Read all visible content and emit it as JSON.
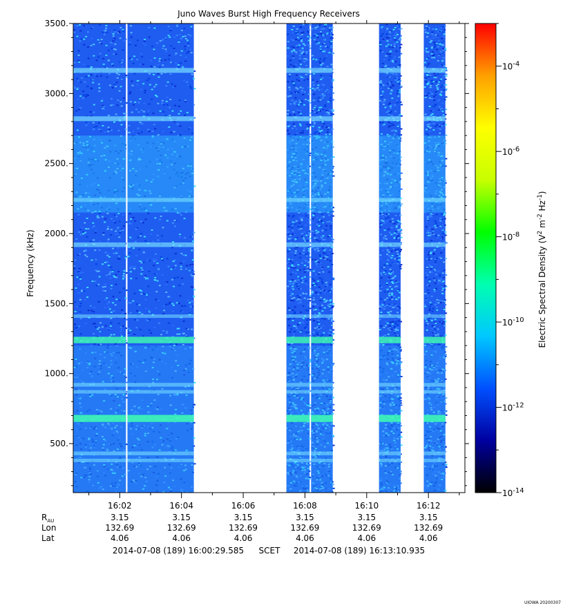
{
  "chart_data": {
    "type": "heatmap",
    "title": "Juno Waves Burst High Frequency Receivers",
    "ylabel": "Frequency (kHz)",
    "ylim": [
      150,
      3500
    ],
    "y_ticks": [
      500,
      1000,
      1500,
      2000,
      2500,
      3000,
      3500
    ],
    "y_tick_labels": [
      "500.",
      "1000.",
      "1500.",
      "2000.",
      "2500.",
      "3000.",
      "3500."
    ],
    "x_range": [
      "16:00:29.585",
      "16:13:10.935"
    ],
    "x_tick_labels": [
      "16:02",
      "16:04",
      "16:06",
      "16:08",
      "16:10",
      "16:12"
    ],
    "x_tick_minutes": [
      2,
      4,
      6,
      8,
      10,
      12
    ],
    "data_segments_minutes": [
      [
        0.0,
        2.2
      ],
      [
        2.25,
        4.4
      ],
      [
        7.4,
        8.15
      ],
      [
        8.2,
        8.9
      ],
      [
        10.4,
        11.1
      ],
      [
        11.85,
        12.55
      ]
    ],
    "bands_khz": [
      {
        "freq": 3165,
        "strength": 0.5
      },
      {
        "freq": 2820,
        "strength": 0.5
      },
      {
        "freq": 2240,
        "strength": 0.35
      },
      {
        "freq": 1920,
        "strength": 0.45
      },
      {
        "freq": 1410,
        "strength": 0.25
      },
      {
        "freq": 1240,
        "strength": 0.8
      },
      {
        "freq": 920,
        "strength": 0.3
      },
      {
        "freq": 870,
        "strength": 0.25
      },
      {
        "freq": 680,
        "strength": 0.9
      },
      {
        "freq": 430,
        "strength": 0.3
      },
      {
        "freq": 380,
        "strength": 0.25
      }
    ],
    "colorbar": {
      "label_main": "Electric Spectral Density (V",
      "label_end": ")",
      "exponent": "-14",
      "tick_exponents": [
        "-14",
        "-12",
        "-10",
        "-8",
        "-6",
        "-4"
      ],
      "tick_values": [
        -14,
        -12,
        -10,
        -8,
        -6,
        -4
      ],
      "range_log": [
        -14,
        -3
      ],
      "colors": [
        "#000000",
        "#0000a0",
        "#0050ff",
        "#00c8ff",
        "#00ffb0",
        "#00ff00",
        "#c8ff00",
        "#ffff00",
        "#ffa000",
        "#ff0000"
      ]
    },
    "ephemeris": {
      "rows": [
        {
          "label": "R",
          "sub": "AU",
          "values": [
            "3.15",
            "3.15",
            "3.15",
            "3.15",
            "3.15",
            "3.15"
          ]
        },
        {
          "label": "Lon",
          "sub": "",
          "values": [
            "132.69",
            "132.69",
            "132.69",
            "132.69",
            "132.69",
            "132.69"
          ]
        },
        {
          "label": "Lat",
          "sub": "",
          "values": [
            "4.06",
            "4.06",
            "4.06",
            "4.06",
            "4.06",
            "4.06"
          ]
        }
      ]
    },
    "time_footer": {
      "start": "2014-07-08 (189) 16:00:29.585",
      "scet": "SCET",
      "end": "2014-07-08 (189) 16:13:10.935"
    },
    "credit": "UIOWA 20200307"
  }
}
